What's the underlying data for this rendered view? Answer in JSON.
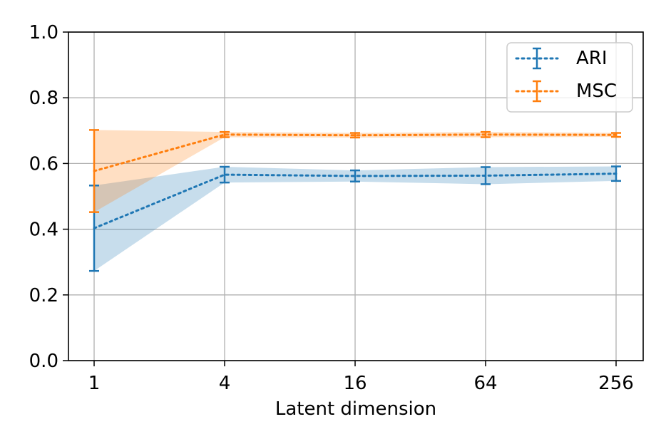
{
  "chart_data": {
    "type": "line",
    "title": "",
    "xlabel": "Latent dimension",
    "ylabel": "",
    "categories": [
      "1",
      "4",
      "16",
      "64",
      "256"
    ],
    "ylim": [
      0.0,
      1.0
    ],
    "yticks": [
      "0.0",
      "0.2",
      "0.4",
      "0.6",
      "0.8",
      "1.0"
    ],
    "grid": true,
    "legend_position": "top-right",
    "series": [
      {
        "name": "ARI",
        "color": "#1f77b4",
        "values": [
          0.403,
          0.566,
          0.562,
          0.563,
          0.569
        ],
        "err": [
          0.13,
          0.024,
          0.017,
          0.026,
          0.022
        ]
      },
      {
        "name": "MSC",
        "color": "#ff7f0e",
        "values": [
          0.577,
          0.688,
          0.686,
          0.688,
          0.687
        ],
        "err": [
          0.125,
          0.008,
          0.007,
          0.008,
          0.006
        ]
      }
    ]
  }
}
